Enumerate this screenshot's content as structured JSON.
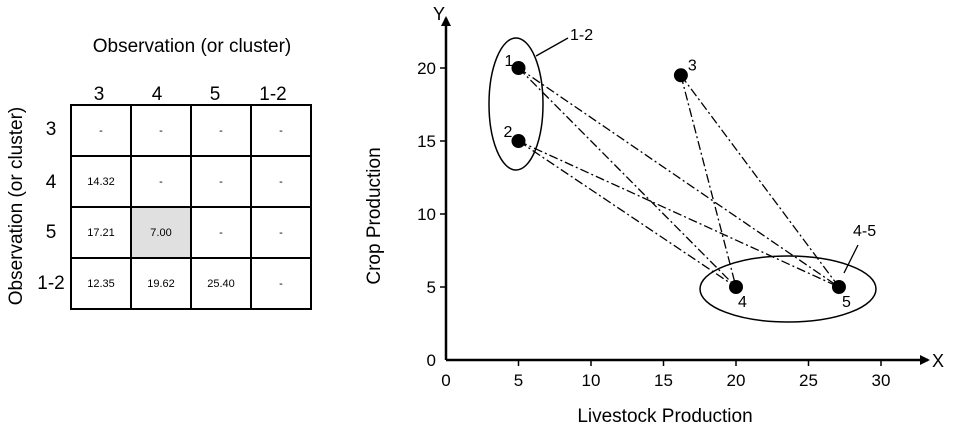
{
  "matrix": {
    "title": "Observation (or cluster)",
    "row_axis_title": "Observation (or cluster)",
    "labels": [
      "3",
      "4",
      "5",
      "1-2"
    ],
    "cells": [
      [
        "-",
        "-",
        "-",
        "-"
      ],
      [
        "14.32",
        "-",
        "-",
        "-"
      ],
      [
        "17.21",
        "7.00",
        "-",
        "-"
      ],
      [
        "12.35",
        "19.62",
        "25.40",
        "-"
      ]
    ],
    "highlight_cell": {
      "row": 2,
      "col": 1
    },
    "highlight_color": "#e0e0e0"
  },
  "plot": {
    "x_axis_label": "Livestock Production",
    "y_axis_label": "Crop Production",
    "x_axis_letter": "X",
    "y_axis_letter": "Y",
    "x_ticks": [
      0,
      5,
      10,
      15,
      20,
      25,
      30
    ],
    "y_ticks": [
      0,
      5,
      10,
      15,
      20
    ],
    "points": [
      {
        "label": "1",
        "x": 5,
        "y": 20
      },
      {
        "label": "2",
        "x": 5,
        "y": 15
      },
      {
        "label": "3",
        "x": 16.2,
        "y": 19.5
      },
      {
        "label": "4",
        "x": 20,
        "y": 5
      },
      {
        "label": "5",
        "x": 27.1,
        "y": 5
      }
    ],
    "links": [
      [
        "1",
        "4"
      ],
      [
        "1",
        "5"
      ],
      [
        "2",
        "4"
      ],
      [
        "2",
        "5"
      ],
      [
        "3",
        "4"
      ],
      [
        "3",
        "5"
      ]
    ],
    "clusters": [
      {
        "label": "1-2",
        "members": [
          "1",
          "2"
        ]
      },
      {
        "label": "4-5",
        "members": [
          "4",
          "5"
        ]
      }
    ]
  }
}
